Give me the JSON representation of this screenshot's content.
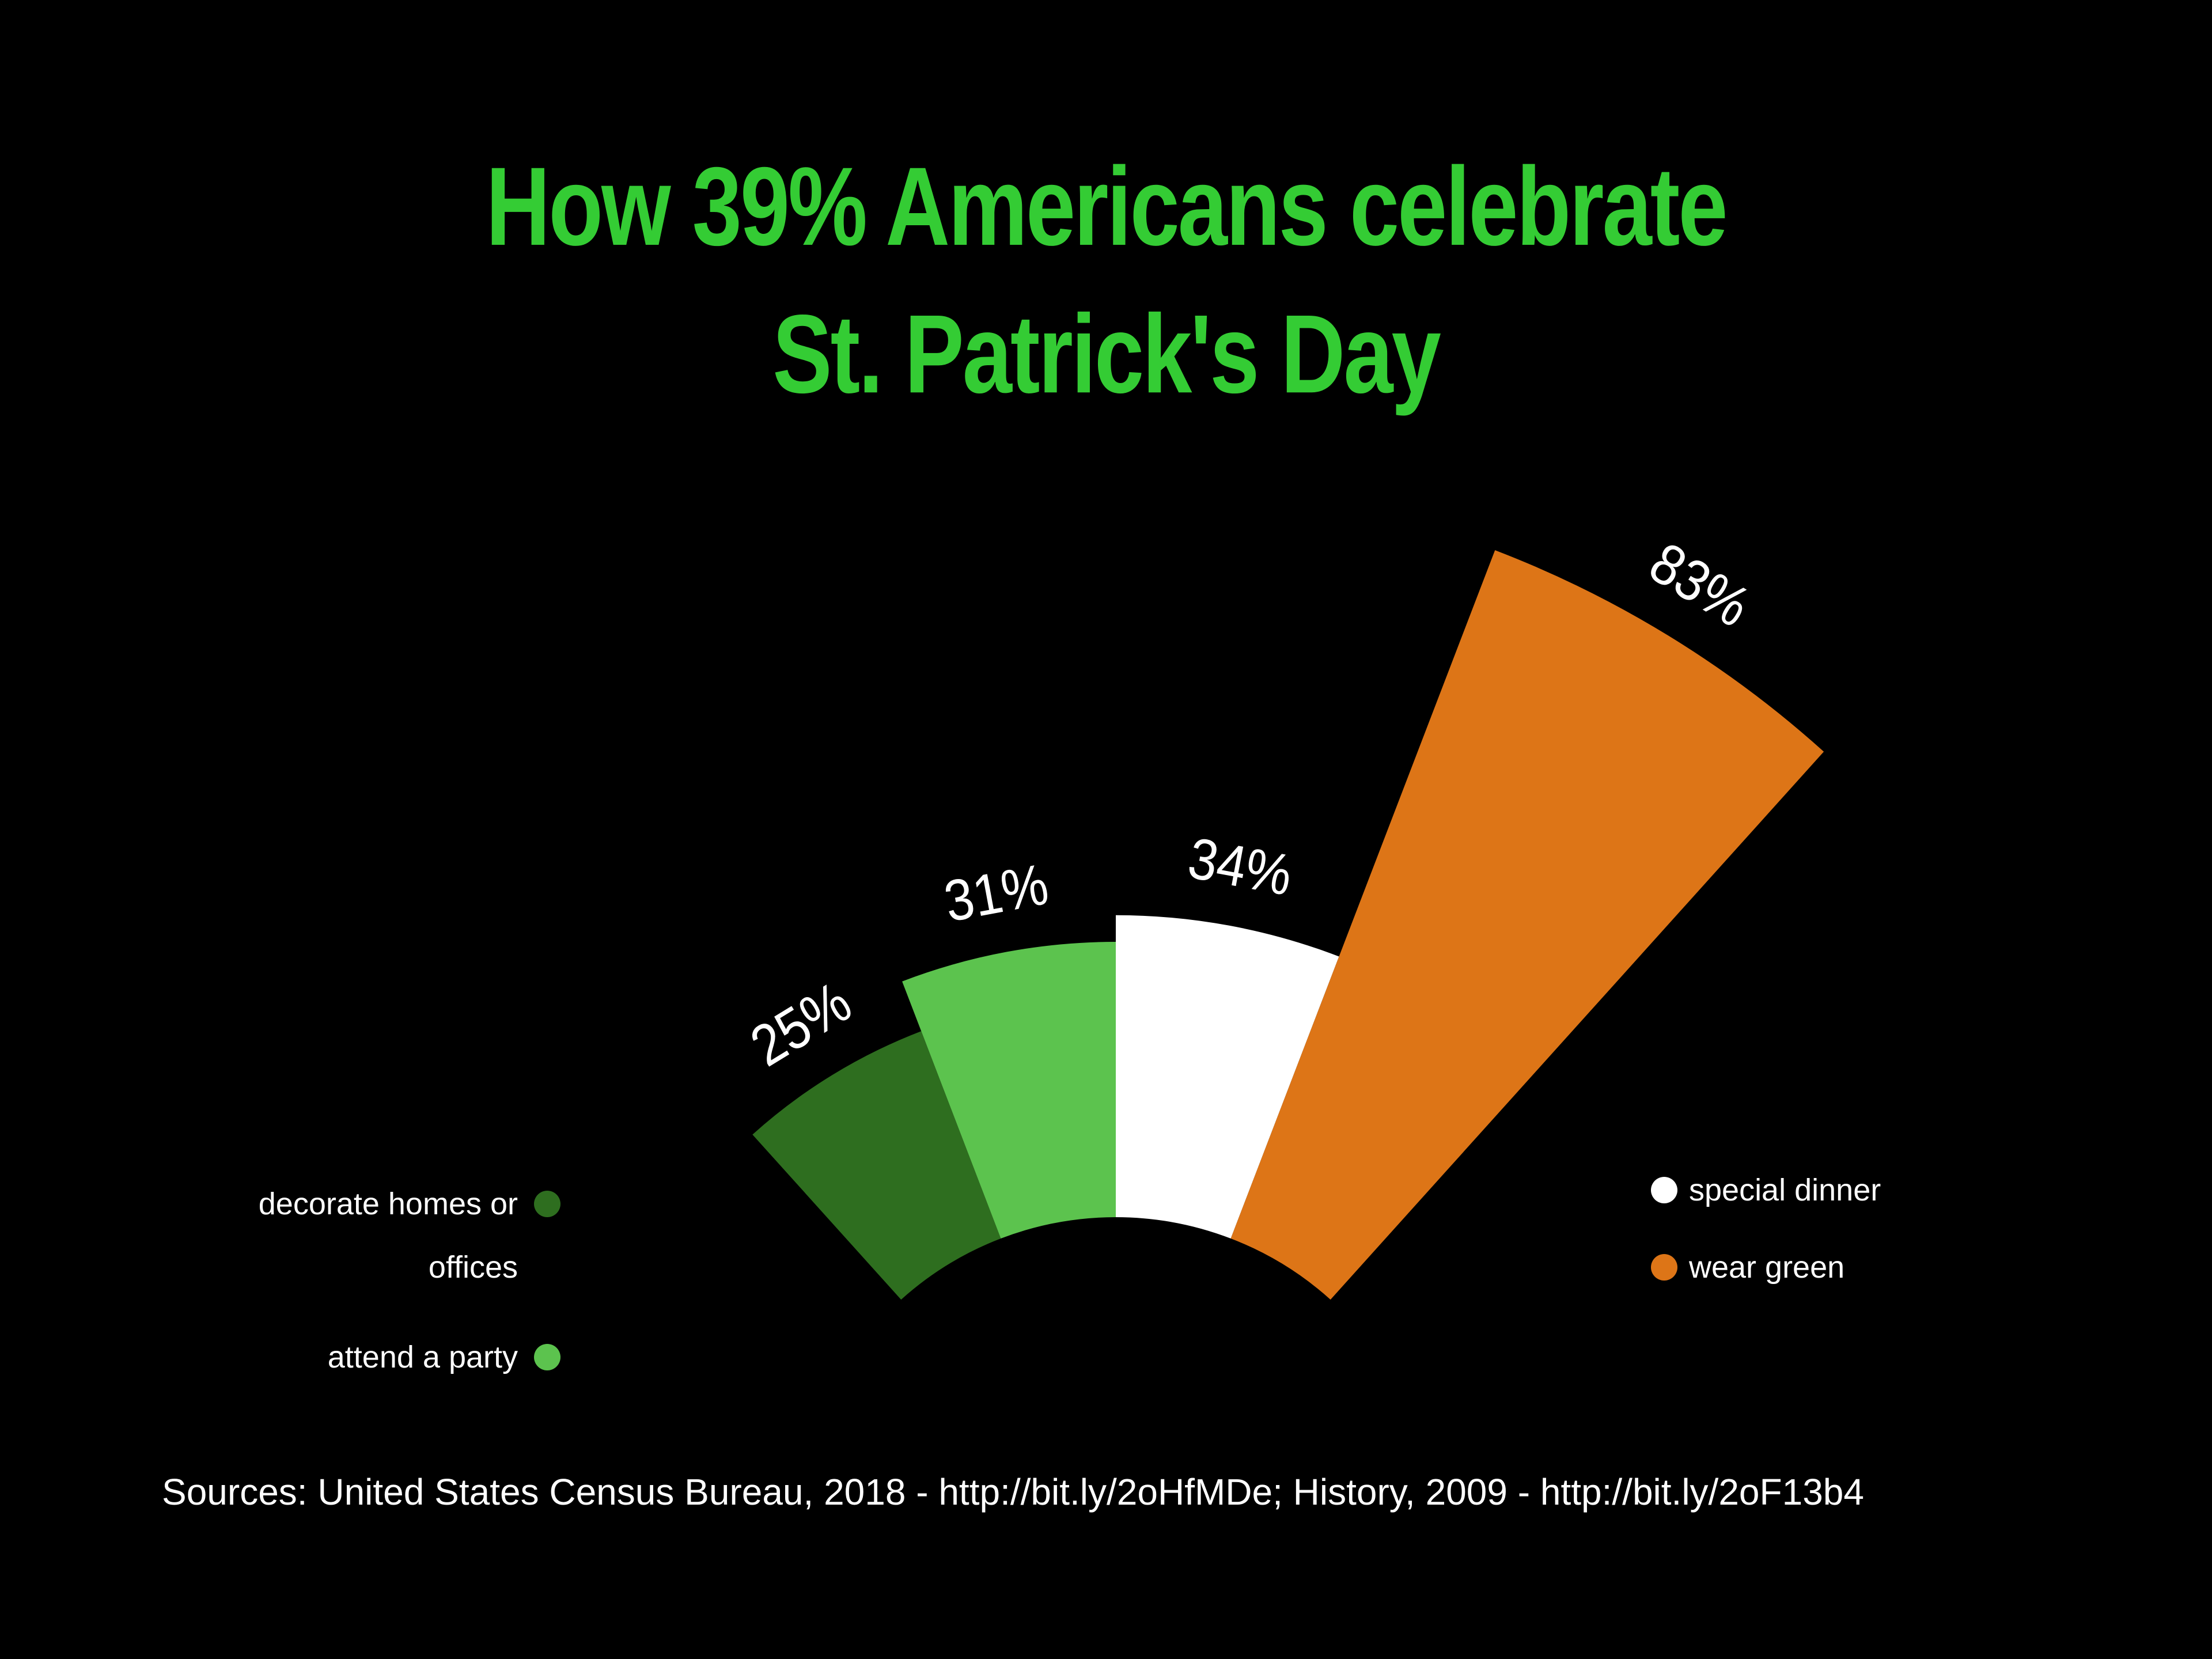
{
  "title": {
    "lines": [
      "How 39% Americans celebrate",
      "St. Patrick's Day"
    ],
    "color": "#34cc34"
  },
  "chart_data": {
    "type": "polar_bar",
    "title": "How 39% Americans celebrate St. Patrick's Day",
    "categories": [
      "decorate homes or offices",
      "attend a party",
      "special dinner",
      "wear green"
    ],
    "values": [
      25,
      31,
      34,
      83
    ],
    "labels": [
      "25%",
      "31%",
      "34%",
      "83%"
    ],
    "unit": "%",
    "colors": [
      "#2e6e1f",
      "#5cc34e",
      "#ffffff",
      "#dd7517"
    ],
    "start_angle_deg": -42,
    "sector_angle_deg": 21,
    "background": "#000000",
    "label_color": "#ffffff",
    "legend_position": "bottom-sides"
  },
  "legend": {
    "left": [
      {
        "label": "decorate homes or offices",
        "color": "#2e6e1f"
      },
      {
        "label": "attend a party",
        "color": "#5cc34e"
      }
    ],
    "right": [
      {
        "label": "special dinner",
        "color": "#ffffff"
      },
      {
        "label": "wear green",
        "color": "#dd7517"
      }
    ]
  },
  "source": {
    "text": "Sources: United States Census Bureau, 2018 - http://bit.ly/2oHfMDe; History, 2009 - http://bit.ly/2oF13b4"
  }
}
